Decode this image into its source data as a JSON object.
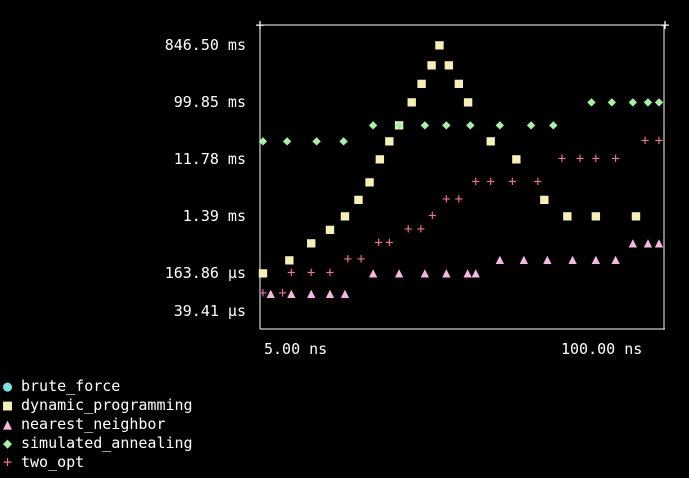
{
  "chart_data": {
    "type": "scatter",
    "y_scale": "log",
    "y_ticks": [
      "846.50 ms",
      "99.85 ms",
      "11.78 ms",
      "1.39 ms",
      "163.86 µs",
      "39.41 µs"
    ],
    "x_ticks": [
      "5.00 ns",
      "100.00 ns"
    ],
    "legend_position": "bottom-left",
    "series": [
      {
        "name": "brute_force",
        "symbol": "●",
        "color": "#7fe0e0",
        "points": []
      },
      {
        "name": "dynamic_programming",
        "symbol": "■",
        "color": "#f5f0b5",
        "points": [
          [
            5.0,
            "163.86 µs"
          ],
          [
            6.1,
            "268 µs"
          ],
          [
            7.2,
            "506 µs"
          ],
          [
            8.3,
            "830 µs"
          ],
          [
            9.3,
            "1.39 ms"
          ],
          [
            10.3,
            "2.60 ms"
          ],
          [
            11.2,
            "5.00 ms"
          ],
          [
            12.1,
            "11.78 ms"
          ],
          [
            13.0,
            "23.00 ms"
          ],
          [
            14.0,
            "42.00 ms"
          ],
          [
            15.4,
            "99.85 ms"
          ],
          [
            16.6,
            "200 ms"
          ],
          [
            17.9,
            "400 ms"
          ],
          [
            19.0,
            "846.50 ms"
          ],
          [
            20.4,
            "400 ms"
          ],
          [
            22.0,
            "200 ms"
          ],
          [
            23.6,
            "99.85 ms"
          ],
          [
            28.0,
            "23.00 ms"
          ],
          [
            34.0,
            "11.78 ms"
          ],
          [
            42.0,
            "2.60 ms"
          ],
          [
            50.0,
            "1.39 ms"
          ],
          [
            62.0,
            "1.39 ms"
          ],
          [
            84.0,
            "1.39 ms"
          ]
        ]
      },
      {
        "name": "nearest_neighbor",
        "symbol": "▲",
        "color": "#f6b8e0",
        "points": [
          [
            5.3,
            "76 µs"
          ],
          [
            6.2,
            "76 µs"
          ],
          [
            7.2,
            "76 µs"
          ],
          [
            8.3,
            "76 µs"
          ],
          [
            9.3,
            "76 µs"
          ],
          [
            11.5,
            "163.86 µs"
          ],
          [
            14.0,
            "163.86 µs"
          ],
          [
            17.0,
            "163.86 µs"
          ],
          [
            20.0,
            "163.86 µs"
          ],
          [
            23.5,
            "163.86 µs"
          ],
          [
            25.0,
            "163.86 µs"
          ],
          [
            30.0,
            "270 µs"
          ],
          [
            36.0,
            "270 µs"
          ],
          [
            43.0,
            "270 µs"
          ],
          [
            52.0,
            "270 µs"
          ],
          [
            62.0,
            "270 µs"
          ],
          [
            72.0,
            "270 µs"
          ],
          [
            82.0,
            "506 µs"
          ],
          [
            92.0,
            "506 µs"
          ],
          [
            100.0,
            "506 µs"
          ]
        ]
      },
      {
        "name": "simulated_annealing",
        "symbol": "◆",
        "color": "#a8f0a8",
        "points": [
          [
            5.0,
            "23.00 ms"
          ],
          [
            6.0,
            "23.00 ms"
          ],
          [
            7.5,
            "23.00 ms"
          ],
          [
            9.2,
            "23.00 ms"
          ],
          [
            11.5,
            "42.00 ms"
          ],
          [
            14.0,
            "42.00 ms"
          ],
          [
            17.0,
            "42.00 ms"
          ],
          [
            20.0,
            "42.00 ms"
          ],
          [
            24.0,
            "42.00 ms"
          ],
          [
            30.0,
            "42.00 ms"
          ],
          [
            38.0,
            "42.00 ms"
          ],
          [
            45.0,
            "42.00 ms"
          ],
          [
            60.0,
            "99.85 ms"
          ],
          [
            70.0,
            "99.85 ms"
          ],
          [
            82.0,
            "99.85 ms"
          ],
          [
            92.0,
            "99.85 ms"
          ],
          [
            100.0,
            "99.85 ms"
          ]
        ]
      },
      {
        "name": "two_opt",
        "symbol": "+",
        "color": "#f06ea0",
        "points": [
          [
            5.0,
            "76 µs"
          ],
          [
            5.8,
            "76 µs"
          ],
          [
            6.2,
            "163.86 µs"
          ],
          [
            7.2,
            "163.86 µs"
          ],
          [
            8.3,
            "163.86 µs"
          ],
          [
            9.5,
            "270 µs"
          ],
          [
            10.5,
            "270 µs"
          ],
          [
            12.0,
            "506 µs"
          ],
          [
            13.0,
            "506 µs"
          ],
          [
            15.0,
            "830 µs"
          ],
          [
            16.5,
            "830 µs"
          ],
          [
            18.0,
            "1.39 ms"
          ],
          [
            20.0,
            "2.60 ms"
          ],
          [
            22.0,
            "2.60 ms"
          ],
          [
            25.0,
            "5.00 ms"
          ],
          [
            28.0,
            "5.00 ms"
          ],
          [
            33.0,
            "5.00 ms"
          ],
          [
            40.0,
            "5.00 ms"
          ],
          [
            48.0,
            "11.78 ms"
          ],
          [
            55.0,
            "11.78 ms"
          ],
          [
            62.0,
            "11.78 ms"
          ],
          [
            72.0,
            "11.78 ms"
          ],
          [
            90.0,
            "23.00 ms"
          ],
          [
            100.0,
            "23.00 ms"
          ]
        ]
      }
    ]
  }
}
